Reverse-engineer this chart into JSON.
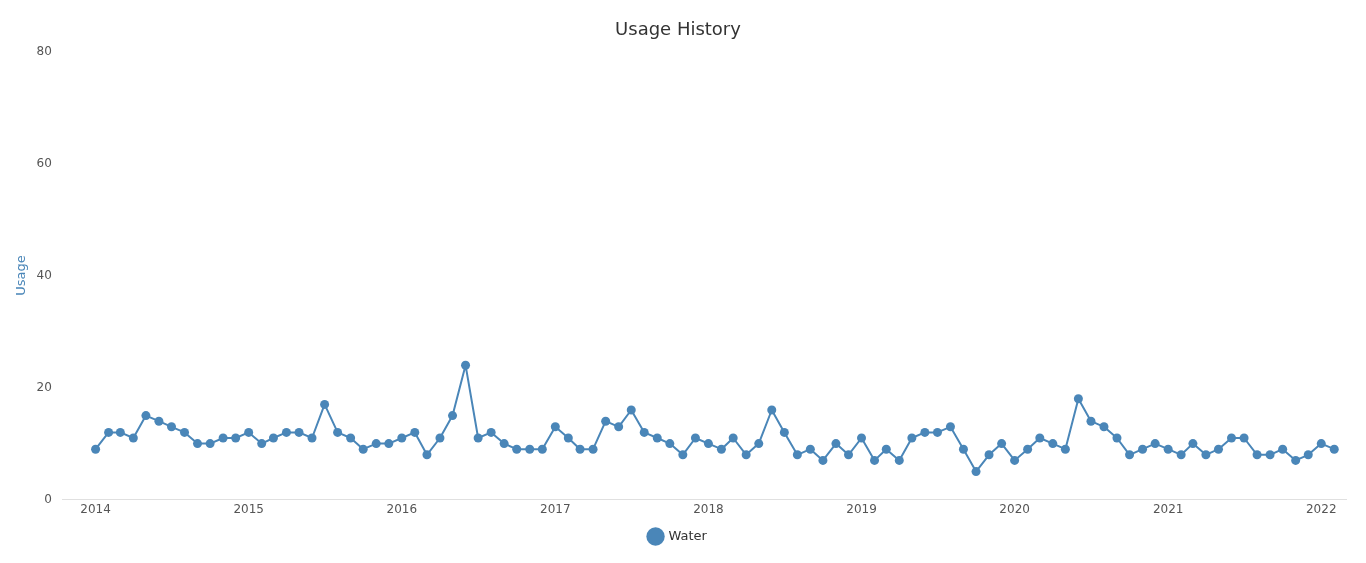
{
  "chart_data": {
    "type": "line",
    "title": "Usage History",
    "ylabel": "Usage",
    "x": [
      "2014-01",
      "2014-02",
      "2014-03",
      "2014-04",
      "2014-05",
      "2014-06",
      "2014-07",
      "2014-08",
      "2014-09",
      "2014-10",
      "2014-11",
      "2014-12",
      "2015-01",
      "2015-02",
      "2015-03",
      "2015-04",
      "2015-05",
      "2015-06",
      "2015-07",
      "2015-08",
      "2015-09",
      "2015-10",
      "2015-11",
      "2015-12",
      "2016-01",
      "2016-02",
      "2016-03",
      "2016-04",
      "2016-05",
      "2016-06",
      "2016-07",
      "2016-08",
      "2016-09",
      "2016-10",
      "2016-11",
      "2016-12",
      "2017-01",
      "2017-02",
      "2017-03",
      "2017-04",
      "2017-05",
      "2017-06",
      "2017-07",
      "2017-08",
      "2017-09",
      "2017-10",
      "2017-11",
      "2017-12",
      "2018-01",
      "2018-02",
      "2018-03",
      "2018-04",
      "2018-05",
      "2018-06",
      "2018-07",
      "2018-08",
      "2018-09",
      "2018-10",
      "2018-11",
      "2018-12",
      "2019-01",
      "2019-02",
      "2019-03",
      "2019-04",
      "2019-05",
      "2019-06",
      "2019-07",
      "2019-08",
      "2019-09",
      "2019-10",
      "2019-11",
      "2019-12",
      "2020-01",
      "2020-02",
      "2020-03",
      "2020-04",
      "2020-05",
      "2020-06",
      "2020-07",
      "2020-08",
      "2020-09",
      "2020-10",
      "2020-11",
      "2020-12",
      "2021-01",
      "2021-02",
      "2021-03",
      "2021-04",
      "2021-05",
      "2021-06",
      "2021-07",
      "2021-08",
      "2021-09",
      "2021-10",
      "2021-11",
      "2021-12",
      "2022-01",
      "2022-02"
    ],
    "series": [
      {
        "name": "Water",
        "color": "#4a86b8",
        "values": [
          9,
          12,
          12,
          11,
          15,
          14,
          13,
          12,
          10,
          10,
          11,
          11,
          12,
          10,
          11,
          12,
          12,
          11,
          17,
          12,
          11,
          9,
          10,
          10,
          11,
          12,
          8,
          11,
          15,
          24,
          11,
          12,
          10,
          9,
          9,
          9,
          13,
          11,
          9,
          9,
          14,
          13,
          16,
          12,
          11,
          10,
          8,
          11,
          10,
          9,
          11,
          8,
          10,
          16,
          12,
          8,
          9,
          7,
          10,
          8,
          11,
          7,
          9,
          7,
          11,
          12,
          12,
          13,
          9,
          5,
          8,
          10,
          7,
          9,
          11,
          10,
          9,
          18,
          14,
          13,
          11,
          8,
          9,
          10,
          9,
          8,
          10,
          8,
          9,
          11,
          11,
          8,
          8,
          9,
          7,
          8,
          10,
          9
        ]
      }
    ],
    "xlim": [
      "2013-10-15",
      "2022-03-01"
    ],
    "xticks": [
      "2014",
      "2015",
      "2016",
      "2017",
      "2018",
      "2019",
      "2020",
      "2021",
      "2022"
    ],
    "ylim": [
      0,
      80
    ],
    "yticks": [
      0,
      20,
      40,
      60,
      80
    ],
    "grid": false,
    "legend": "bottom",
    "marker": "circle",
    "line_style": "solid"
  }
}
